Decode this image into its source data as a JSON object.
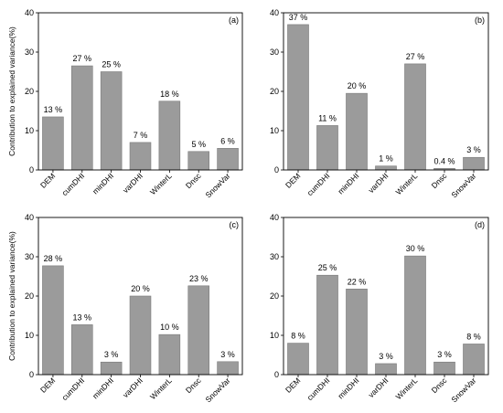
{
  "chart_data": [
    {
      "type": "bar",
      "panel_label": "(a)",
      "ylabel": "Contribution to explained variance(%)",
      "ylim": [
        0,
        40
      ],
      "yticks": [
        0,
        10,
        20,
        30,
        40
      ],
      "categories": [
        "DEM",
        "cumDHI",
        "minDHI",
        "varDHI",
        "WinterL",
        "Dnsc",
        "SnowVar"
      ],
      "values": [
        13.5,
        26.5,
        25,
        7,
        17.5,
        4.7,
        5.5
      ],
      "data_labels": [
        "13 %",
        "27 %",
        "25 %",
        "7 %",
        "18 %",
        "5 %",
        "6 %"
      ],
      "bar_color": "#9b9b9b"
    },
    {
      "type": "bar",
      "panel_label": "(b)",
      "ylabel": "",
      "ylim": [
        0,
        40
      ],
      "yticks": [
        0,
        10,
        20,
        30,
        40
      ],
      "categories": [
        "DEM",
        "cumDHI",
        "minDHI",
        "varDHI",
        "WinterL",
        "Dnsc",
        "SnowVar"
      ],
      "values": [
        37,
        11.3,
        19.5,
        1,
        27,
        0.4,
        3.2
      ],
      "data_labels": [
        "37 %",
        "11 %",
        "20 %",
        "1 %",
        "27 %",
        "0.4 %",
        "3 %"
      ],
      "bar_color": "#9b9b9b"
    },
    {
      "type": "bar",
      "panel_label": "(c)",
      "ylabel": "Contribution to explained variance(%)",
      "ylim": [
        0,
        40
      ],
      "yticks": [
        0,
        10,
        20,
        30,
        40
      ],
      "categories": [
        "DEM",
        "cumDHI",
        "minDHI",
        "varDHI",
        "WinterL",
        "Dnsc",
        "SnowVar"
      ],
      "values": [
        27.7,
        12.7,
        3.2,
        20,
        10.2,
        22.6,
        3.3
      ],
      "data_labels": [
        "28 %",
        "13 %",
        "3 %",
        "20 %",
        "10 %",
        "23 %",
        "3 %"
      ],
      "bar_color": "#9b9b9b"
    },
    {
      "type": "bar",
      "panel_label": "(d)",
      "ylabel": "",
      "ylim": [
        0,
        40
      ],
      "yticks": [
        0,
        10,
        20,
        30,
        40
      ],
      "categories": [
        "DEM",
        "cumDHI",
        "minDHI",
        "varDHI",
        "WinterL",
        "Dnsc",
        "SnowVar"
      ],
      "values": [
        8,
        25.3,
        21.8,
        2.8,
        30.2,
        3.2,
        7.8
      ],
      "data_labels": [
        "8 %",
        "25 %",
        "22 %",
        "3 %",
        "30 %",
        "3 %",
        "8 %"
      ],
      "bar_color": "#9b9b9b"
    }
  ]
}
